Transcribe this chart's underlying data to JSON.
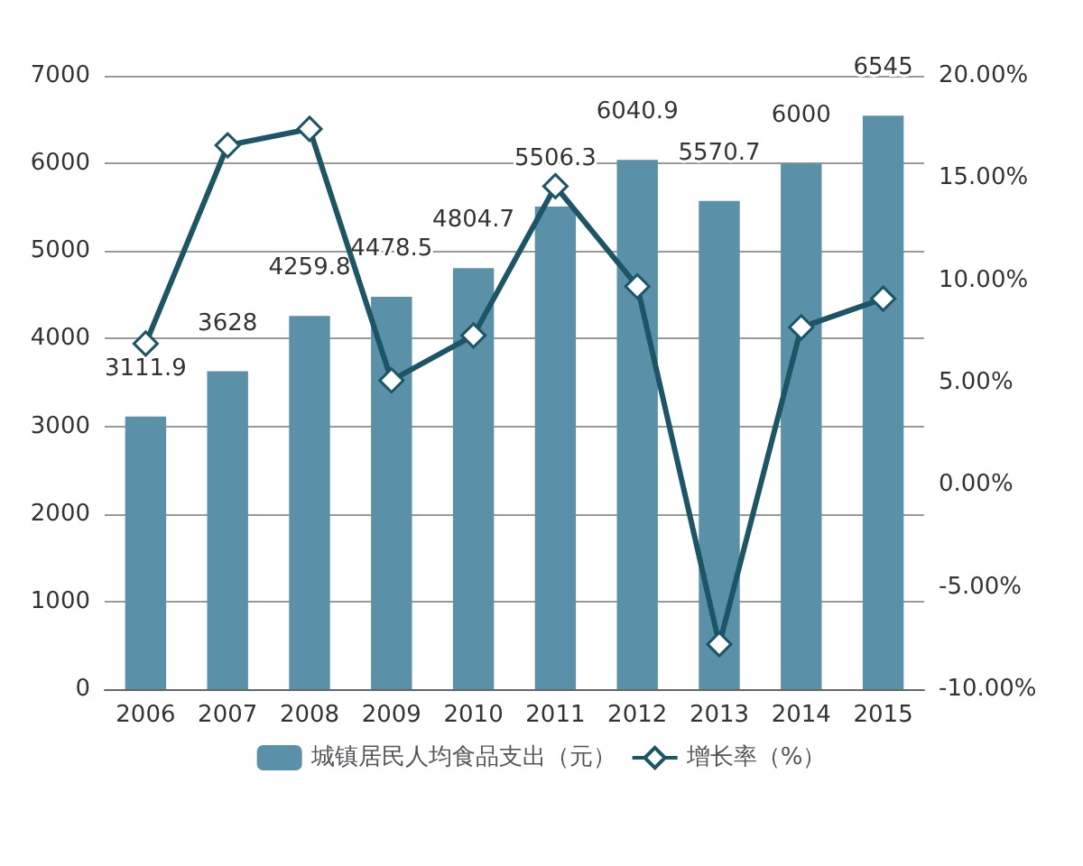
{
  "chart_data": {
    "type": "bar",
    "categories": [
      "2006",
      "2007",
      "2008",
      "2009",
      "2010",
      "2011",
      "2012",
      "2013",
      "2014",
      "2015"
    ],
    "series": [
      {
        "name": "城镇居民人均食品支出（元）",
        "color": "#5b91a8",
        "values": [
          3111.9,
          3628,
          4259.8,
          4478.5,
          4804.7,
          5506.3,
          6040.9,
          5570.7,
          6000,
          6545
        ],
        "data_labels": true
      },
      {
        "name": "增长率（%）",
        "type": "line",
        "axis": "y2",
        "color": "#1b5566",
        "marker": "diamond",
        "values": [
          6.9,
          16.6,
          17.4,
          5.1,
          7.3,
          14.6,
          9.7,
          -7.8,
          7.7,
          9.1
        ]
      }
    ],
    "ylim": [
      0,
      7000
    ],
    "yticks": [
      0,
      1000,
      2000,
      3000,
      4000,
      5000,
      6000,
      7000
    ],
    "y2lim": [
      -10,
      20
    ],
    "y2ticks": [
      {
        "value": -10,
        "label": "-10.00%"
      },
      {
        "value": -5,
        "label": "-5.00%"
      },
      {
        "value": 0,
        "label": "0.00%"
      },
      {
        "value": 5,
        "label": "5.00%"
      },
      {
        "value": 10,
        "label": "10.00%"
      },
      {
        "value": 15,
        "label": "15.00%"
      },
      {
        "value": 20,
        "label": "20.00%"
      }
    ],
    "grid": "y",
    "legend": "bottom"
  }
}
